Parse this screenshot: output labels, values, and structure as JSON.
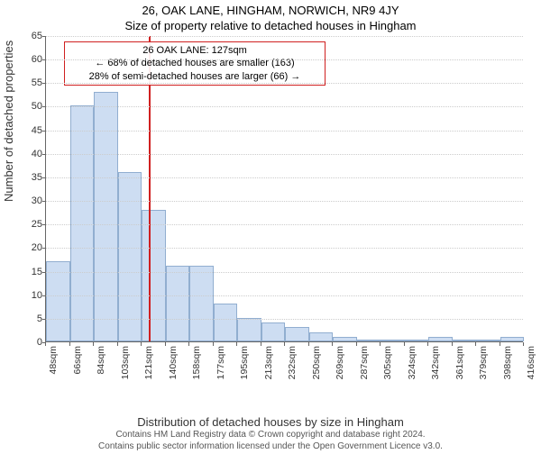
{
  "title": "26, OAK LANE, HINGHAM, NORWICH, NR9 4JY",
  "subtitle": "Size of property relative to detached houses in Hingham",
  "ylabel": "Number of detached properties",
  "xlabel": "Distribution of detached houses by size in Hingham",
  "footer_line1": "Contains HM Land Registry data © Crown copyright and database right 2024.",
  "footer_line2": "Contains public sector information licensed under the Open Government Licence v3.0.",
  "annotation": {
    "line1": "26 OAK LANE: 127sqm",
    "line2": "← 68% of detached houses are smaller (163)",
    "line3": "28% of semi-detached houses are larger (66) →"
  },
  "chart": {
    "type": "histogram",
    "bar_color": "#cdddf2",
    "bar_border": "#91aed0",
    "grid_color": "#cccccc",
    "axis_color": "#666666",
    "ref_color": "#d02020",
    "background_color": "#ffffff",
    "ylim": [
      0,
      65
    ],
    "ytick_step": 5,
    "ref_x_sqm": 127,
    "xtick_labels": [
      "48sqm",
      "66sqm",
      "84sqm",
      "103sqm",
      "121sqm",
      "140sqm",
      "158sqm",
      "177sqm",
      "195sqm",
      "213sqm",
      "232sqm",
      "250sqm",
      "269sqm",
      "287sqm",
      "305sqm",
      "324sqm",
      "342sqm",
      "361sqm",
      "379sqm",
      "398sqm",
      "416sqm"
    ],
    "bin_start_sqm": 48,
    "bin_width_sqm": 18.4,
    "bar_values": [
      17,
      50,
      53,
      36,
      28,
      16,
      16,
      8,
      5,
      4,
      3,
      2,
      1,
      0,
      0,
      0,
      1,
      0,
      0,
      1
    ]
  }
}
